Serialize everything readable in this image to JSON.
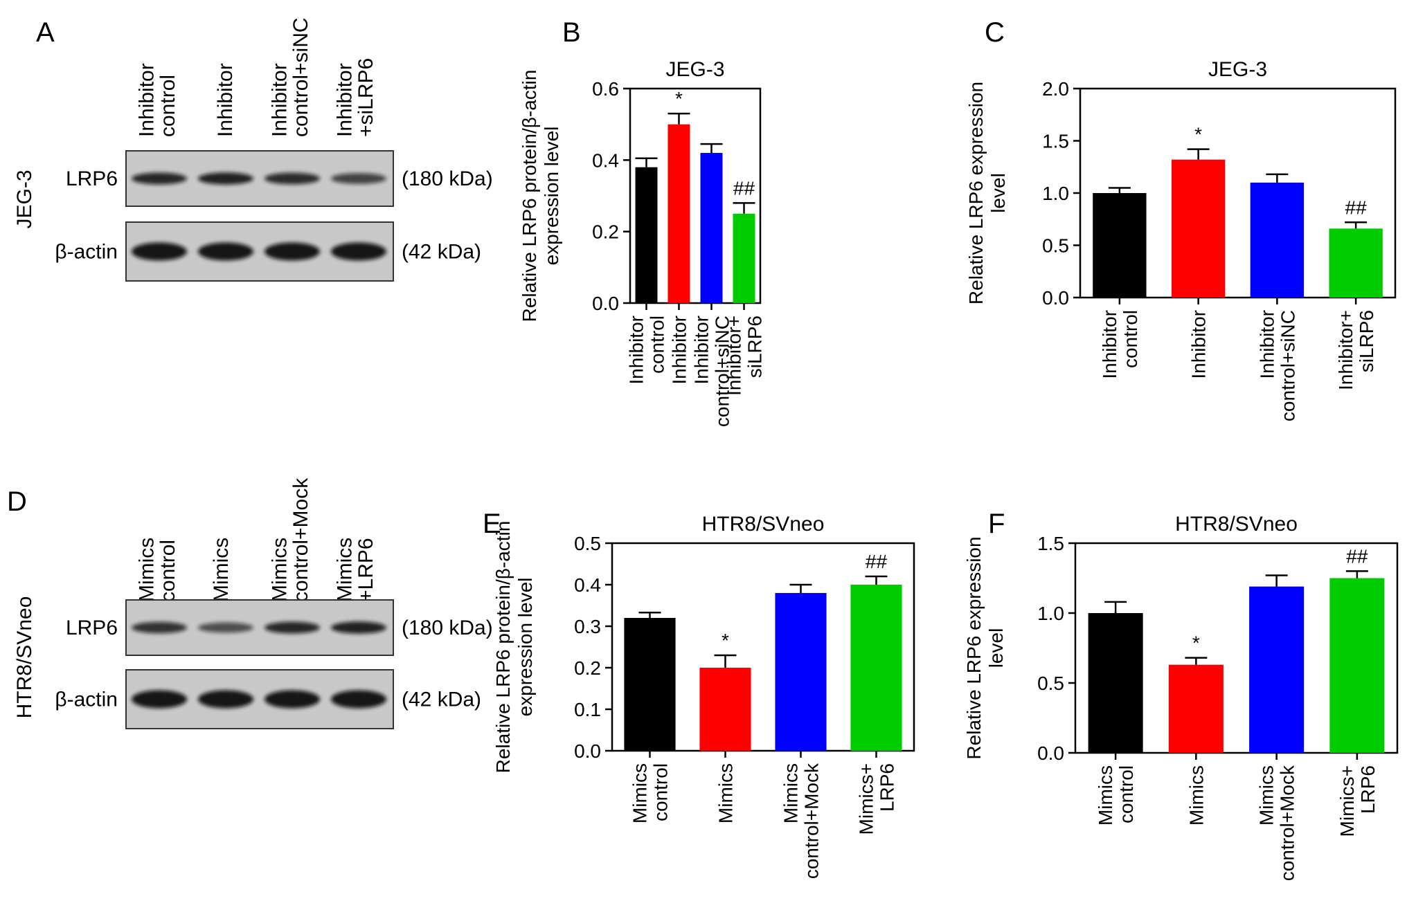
{
  "panels": {
    "A": {
      "letter": "A",
      "cell_line": "JEG-3",
      "lanes": [
        "Inhibitor\ncontrol",
        "Inhibitor",
        "Inhibitor\ncontrol+siNC",
        "Inhibitor\n+siLRP6"
      ],
      "rows": [
        {
          "label": "LRP6",
          "size": "(180 kDa)",
          "band_intensity": [
            0.85,
            0.9,
            0.8,
            0.6
          ]
        },
        {
          "label": "β-actin",
          "size": "(42 kDa)",
          "band_intensity": [
            1,
            1,
            1,
            1
          ]
        }
      ]
    },
    "D": {
      "letter": "D",
      "cell_line": "HTR8/SVneo",
      "lanes": [
        "Mimics\ncontrol",
        "Mimics",
        "Mimics\ncontrol+Mock",
        "Mimics\n+LRP6"
      ],
      "rows": [
        {
          "label": "LRP6",
          "size": "(180 kDa)",
          "band_intensity": [
            0.75,
            0.5,
            0.85,
            0.9
          ]
        },
        {
          "label": "β-actin",
          "size": "(42 kDa)",
          "band_intensity": [
            1,
            1,
            1,
            1
          ]
        }
      ]
    }
  },
  "chart_data": [
    {
      "panel": "B",
      "type": "bar",
      "title": "JEG-3",
      "ylabel": [
        "Relative LRP6 protein/β-actin",
        "expression level"
      ],
      "categories": [
        "Inhibitor\ncontrol",
        "Inhibitor",
        "Inhibitor\ncontrol+siNC",
        "Inhibitor+\nsiLRP6"
      ],
      "values": [
        0.38,
        0.5,
        0.42,
        0.25
      ],
      "errors": [
        0.025,
        0.03,
        0.025,
        0.03
      ],
      "annotations": [
        "",
        "*",
        "",
        "##"
      ],
      "colors": [
        "#000000",
        "#ff0000",
        "#0000ff",
        "#00cc00"
      ],
      "ylim": [
        0,
        0.6
      ],
      "yticks": [
        "0.0",
        "0.2",
        "0.4",
        "0.6"
      ]
    },
    {
      "panel": "C",
      "type": "bar",
      "title": "JEG-3",
      "ylabel": [
        "Relative LRP6 expression",
        "level"
      ],
      "categories": [
        "Inhibitor\ncontrol",
        "Inhibitor",
        "Inhibitor\ncontrol+siNC",
        "Inhibitor+\nsiLRP6"
      ],
      "values": [
        1.0,
        1.32,
        1.1,
        0.66
      ],
      "errors": [
        0.05,
        0.1,
        0.08,
        0.06
      ],
      "annotations": [
        "",
        "*",
        "",
        "##"
      ],
      "colors": [
        "#000000",
        "#ff0000",
        "#0000ff",
        "#00cc00"
      ],
      "ylim": [
        0,
        2.0
      ],
      "yticks": [
        "0.0",
        "0.5",
        "1.0",
        "1.5",
        "2.0"
      ]
    },
    {
      "panel": "E",
      "type": "bar",
      "title": "HTR8/SVneo",
      "ylabel": [
        "Relative LRP6 protein/β-actin",
        "expression level"
      ],
      "categories": [
        "Mimics\ncontrol",
        "Mimics",
        "Mimics\ncontrol+Mock",
        "Mimics+\nLRP6"
      ],
      "values": [
        0.32,
        0.2,
        0.38,
        0.4
      ],
      "errors": [
        0.013,
        0.03,
        0.02,
        0.02
      ],
      "annotations": [
        "",
        "*",
        "",
        "##"
      ],
      "colors": [
        "#000000",
        "#ff0000",
        "#0000ff",
        "#00cc00"
      ],
      "ylim": [
        0,
        0.5
      ],
      "yticks": [
        "0.0",
        "0.1",
        "0.2",
        "0.3",
        "0.4",
        "0.5"
      ]
    },
    {
      "panel": "F",
      "type": "bar",
      "title": "HTR8/SVneo",
      "ylabel": [
        "Relative LRP6 expression",
        "level"
      ],
      "categories": [
        "Mimics\ncontrol",
        "Mimics",
        "Mimics\ncontrol+Mock",
        "Mimics+\nLRP6"
      ],
      "values": [
        1.0,
        0.63,
        1.19,
        1.25
      ],
      "errors": [
        0.08,
        0.05,
        0.08,
        0.05
      ],
      "annotations": [
        "",
        "*",
        "",
        "##"
      ],
      "colors": [
        "#000000",
        "#ff0000",
        "#0000ff",
        "#00cc00"
      ],
      "ylim": [
        0,
        1.5
      ],
      "yticks": [
        "0.0",
        "0.5",
        "1.0",
        "1.5"
      ]
    }
  ]
}
